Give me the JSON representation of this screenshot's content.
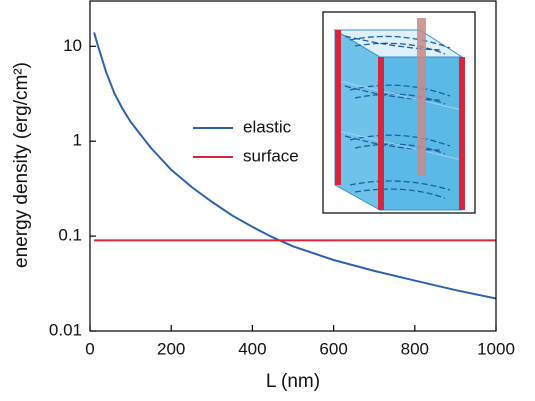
{
  "chart_data": {
    "type": "line",
    "x_label": "L (nm)",
    "y_label": "energy density (erg/cm²)",
    "x": [
      10,
      20,
      40,
      60,
      80,
      100,
      150,
      200,
      250,
      300,
      350,
      400,
      450,
      500,
      600,
      700,
      800,
      900,
      1000
    ],
    "series": [
      {
        "name": "elastic",
        "color": "#2a62b0",
        "values": [
          14,
          10,
          5.3,
          3.2,
          2.2,
          1.6,
          0.85,
          0.5,
          0.33,
          0.23,
          0.165,
          0.125,
          0.097,
          0.078,
          0.056,
          0.043,
          0.034,
          0.027,
          0.022
        ]
      },
      {
        "name": "surface",
        "color": "#d8243c",
        "values": [
          0.09,
          0.09,
          0.09,
          0.09,
          0.09,
          0.09,
          0.09,
          0.09,
          0.09,
          0.09,
          0.09,
          0.09,
          0.09,
          0.09,
          0.09,
          0.09,
          0.09,
          0.09,
          0.09
        ]
      }
    ],
    "xlim": [
      0,
      1000
    ],
    "xticks": [
      0,
      200,
      400,
      600,
      800,
      1000
    ],
    "ylim": [
      0.01,
      30
    ],
    "yticks": [
      0.01,
      0.1,
      1,
      10
    ],
    "y_scale": "log"
  }
}
